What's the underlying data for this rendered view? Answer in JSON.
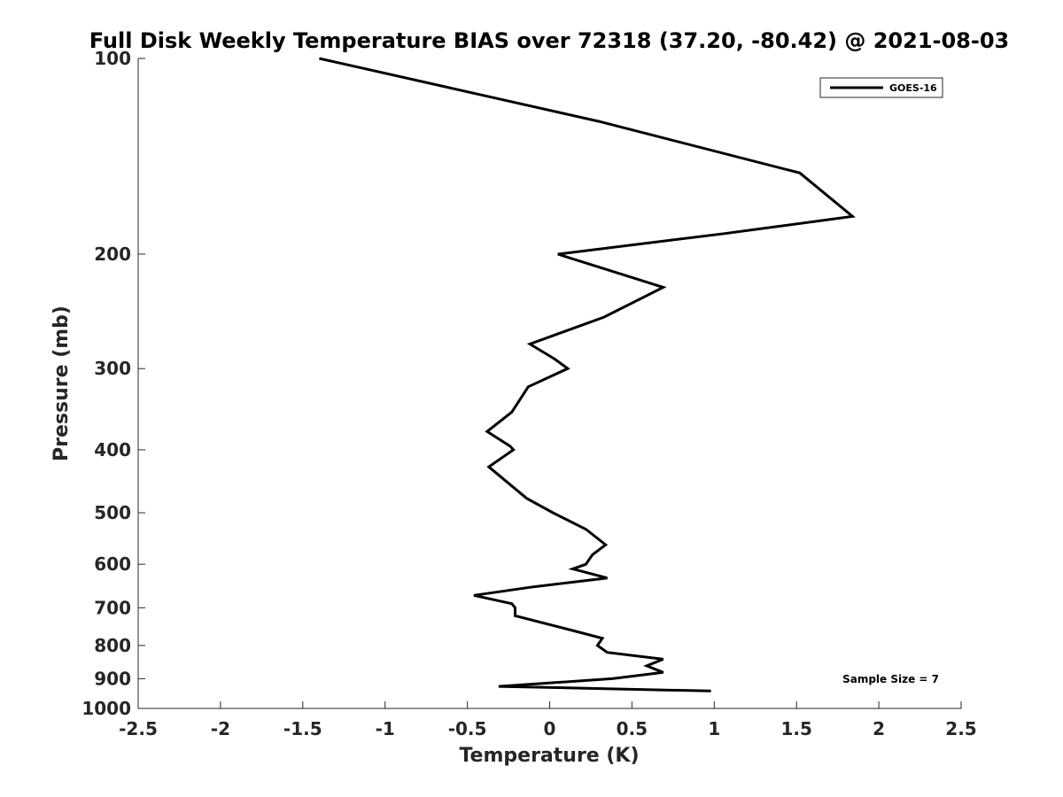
{
  "chart_data": {
    "type": "line",
    "title": "Full Disk Weekly Temperature BIAS over 72318 (37.20, -80.42) @ 2021-08-03",
    "xlabel": "Temperature (K)",
    "ylabel": "Pressure (mb)",
    "xlim": [
      -2.5,
      2.5
    ],
    "ylim": [
      100,
      1000
    ],
    "y_scale": "log",
    "y_reversed": true,
    "x_ticks": [
      -2.5,
      -2,
      -1.5,
      -1,
      -0.5,
      0,
      0.5,
      1,
      1.5,
      2,
      2.5
    ],
    "x_tick_labels": [
      "-2.5",
      "-2",
      "-1.5",
      "-1",
      "-0.5",
      "0",
      "0.5",
      "1",
      "1.5",
      "2",
      "2.5"
    ],
    "y_ticks": [
      100,
      200,
      300,
      400,
      500,
      600,
      700,
      800,
      900,
      1000
    ],
    "y_tick_labels": [
      "100",
      "200",
      "300",
      "400",
      "500",
      "600",
      "700",
      "800",
      "900",
      "1000"
    ],
    "grid": false,
    "legend_position": "top-right",
    "line_color": "#000000",
    "series": [
      {
        "name": "GOES-16",
        "points": [
          {
            "x": -1.4,
            "y": 100
          },
          {
            "x": 0.3,
            "y": 125
          },
          {
            "x": 1.52,
            "y": 150
          },
          {
            "x": 1.84,
            "y": 175
          },
          {
            "x": 1.06,
            "y": 186
          },
          {
            "x": 0.05,
            "y": 200
          },
          {
            "x": 0.69,
            "y": 225
          },
          {
            "x": 0.33,
            "y": 250
          },
          {
            "x": -0.12,
            "y": 275
          },
          {
            "x": 0.03,
            "y": 290
          },
          {
            "x": 0.11,
            "y": 300
          },
          {
            "x": -0.13,
            "y": 320
          },
          {
            "x": -0.23,
            "y": 350
          },
          {
            "x": -0.38,
            "y": 375
          },
          {
            "x": -0.24,
            "y": 395
          },
          {
            "x": -0.22,
            "y": 400
          },
          {
            "x": -0.37,
            "y": 425
          },
          {
            "x": -0.14,
            "y": 475
          },
          {
            "x": 0.02,
            "y": 500
          },
          {
            "x": 0.22,
            "y": 530
          },
          {
            "x": 0.34,
            "y": 560
          },
          {
            "x": 0.26,
            "y": 580
          },
          {
            "x": 0.22,
            "y": 600
          },
          {
            "x": 0.14,
            "y": 610
          },
          {
            "x": 0.35,
            "y": 630
          },
          {
            "x": -0.1,
            "y": 650
          },
          {
            "x": -0.46,
            "y": 670
          },
          {
            "x": -0.23,
            "y": 690
          },
          {
            "x": -0.21,
            "y": 700
          },
          {
            "x": -0.21,
            "y": 720
          },
          {
            "x": 0.15,
            "y": 760
          },
          {
            "x": 0.32,
            "y": 780
          },
          {
            "x": 0.29,
            "y": 800
          },
          {
            "x": 0.35,
            "y": 820
          },
          {
            "x": 0.69,
            "y": 840
          },
          {
            "x": 0.59,
            "y": 860
          },
          {
            "x": 0.69,
            "y": 880
          },
          {
            "x": 0.38,
            "y": 900
          },
          {
            "x": -0.31,
            "y": 925
          },
          {
            "x": 0.98,
            "y": 940
          }
        ]
      }
    ],
    "annotations": [
      "Sample Size = 7"
    ]
  }
}
